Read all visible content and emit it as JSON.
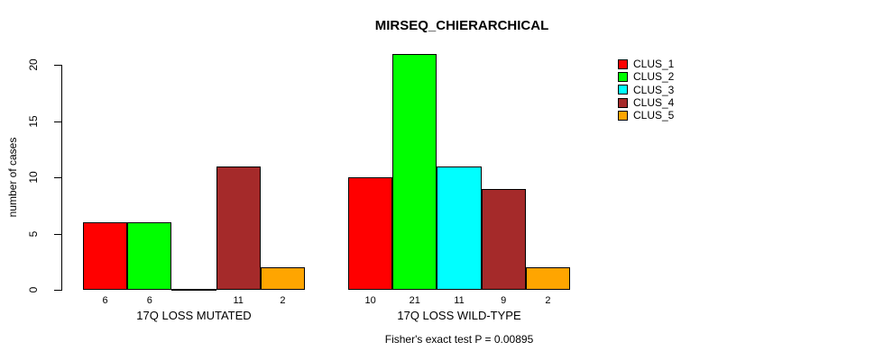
{
  "chart_data": {
    "type": "bar",
    "title": "MIRSEQ_CHIERARCHICAL",
    "ylabel": "number of cases",
    "xlabel": "",
    "ylim": [
      0,
      21.5
    ],
    "yticks": [
      0,
      5,
      10,
      15,
      20
    ],
    "grid": false,
    "legend_position": "right",
    "categories": [
      "17Q LOSS MUTATED",
      "17Q LOSS WILD-TYPE"
    ],
    "series": [
      {
        "name": "CLUS_1",
        "color": "#ff0000",
        "values": [
          6,
          10
        ]
      },
      {
        "name": "CLUS_2",
        "color": "#00ff00",
        "values": [
          6,
          21
        ]
      },
      {
        "name": "CLUS_3",
        "color": "#00ffff",
        "values": [
          0,
          11
        ]
      },
      {
        "name": "CLUS_4",
        "color": "#a52a2a",
        "values": [
          11,
          9
        ]
      },
      {
        "name": "CLUS_5",
        "color": "#ffa500",
        "values": [
          2,
          2
        ]
      }
    ],
    "bar_value_labels": [
      [
        "6",
        "6",
        "",
        "11",
        "2"
      ],
      [
        "10",
        "21",
        "11",
        "9",
        "2"
      ]
    ],
    "annotation": "Fisher's exact test P = 0.00895"
  },
  "style": {
    "bar_border_color": "#000000",
    "axis_color": "#000000",
    "text_color": "#000000",
    "background_color": "#ffffff"
  }
}
